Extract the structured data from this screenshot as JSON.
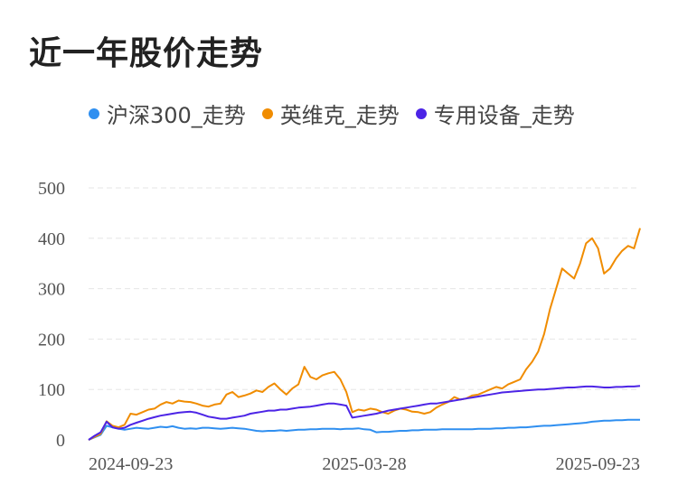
{
  "title": "近一年股价走势",
  "chart_data": {
    "type": "line",
    "title": "近一年股价走势",
    "xlabel": "",
    "ylabel": "",
    "ylim": [
      0,
      500
    ],
    "yticks": [
      0,
      100,
      200,
      300,
      400,
      500
    ],
    "x_tick_labels": [
      "2024-09-23",
      "2025-03-28",
      "2025-09-23"
    ],
    "grid": true,
    "legend_position": "top",
    "series": [
      {
        "name": "沪深300_走势",
        "color": "#2f8ff0",
        "values": [
          0,
          5,
          10,
          28,
          25,
          22,
          20,
          22,
          24,
          23,
          22,
          24,
          26,
          25,
          27,
          24,
          22,
          23,
          22,
          24,
          24,
          23,
          22,
          23,
          24,
          23,
          22,
          20,
          18,
          17,
          18,
          18,
          19,
          18,
          19,
          20,
          20,
          21,
          21,
          22,
          22,
          22,
          21,
          22,
          22,
          23,
          21,
          20,
          15,
          16,
          16,
          17,
          18,
          18,
          19,
          19,
          20,
          20,
          20,
          21,
          21,
          21,
          21,
          21,
          21,
          22,
          22,
          22,
          23,
          23,
          24,
          24,
          25,
          25,
          26,
          27,
          28,
          28,
          29,
          30,
          31,
          32,
          33,
          34,
          36,
          37,
          38,
          38,
          39,
          39,
          40,
          40,
          40
        ]
      },
      {
        "name": "英维克_走势",
        "color": "#f08c00",
        "values": [
          0,
          6,
          12,
          37,
          28,
          25,
          30,
          52,
          50,
          55,
          60,
          62,
          70,
          75,
          72,
          78,
          76,
          75,
          72,
          68,
          66,
          70,
          72,
          90,
          95,
          85,
          88,
          92,
          98,
          95,
          105,
          112,
          100,
          90,
          102,
          110,
          145,
          125,
          120,
          128,
          132,
          135,
          120,
          95,
          55,
          60,
          58,
          62,
          60,
          55,
          52,
          58,
          62,
          60,
          56,
          55,
          52,
          55,
          64,
          70,
          75,
          85,
          80,
          82,
          88,
          90,
          95,
          100,
          105,
          102,
          110,
          115,
          120,
          140,
          155,
          175,
          210,
          260,
          300,
          340,
          330,
          320,
          350,
          390,
          400,
          380,
          330,
          340,
          360,
          375,
          385,
          380,
          420
        ]
      },
      {
        "name": "专用设备_走势",
        "color": "#4c24e6",
        "values": [
          0,
          8,
          15,
          36,
          25,
          22,
          24,
          30,
          34,
          38,
          42,
          45,
          48,
          50,
          52,
          54,
          55,
          56,
          54,
          50,
          46,
          44,
          42,
          42,
          44,
          46,
          48,
          52,
          54,
          56,
          58,
          58,
          60,
          60,
          62,
          64,
          65,
          66,
          68,
          70,
          72,
          72,
          70,
          68,
          44,
          46,
          48,
          50,
          52,
          55,
          58,
          60,
          62,
          64,
          66,
          68,
          70,
          72,
          72,
          74,
          76,
          78,
          80,
          82,
          84,
          86,
          88,
          90,
          92,
          94,
          95,
          96,
          97,
          98,
          99,
          100,
          100,
          101,
          102,
          103,
          104,
          104,
          105,
          106,
          106,
          105,
          104,
          104,
          105,
          105,
          106,
          106,
          107
        ]
      }
    ]
  }
}
